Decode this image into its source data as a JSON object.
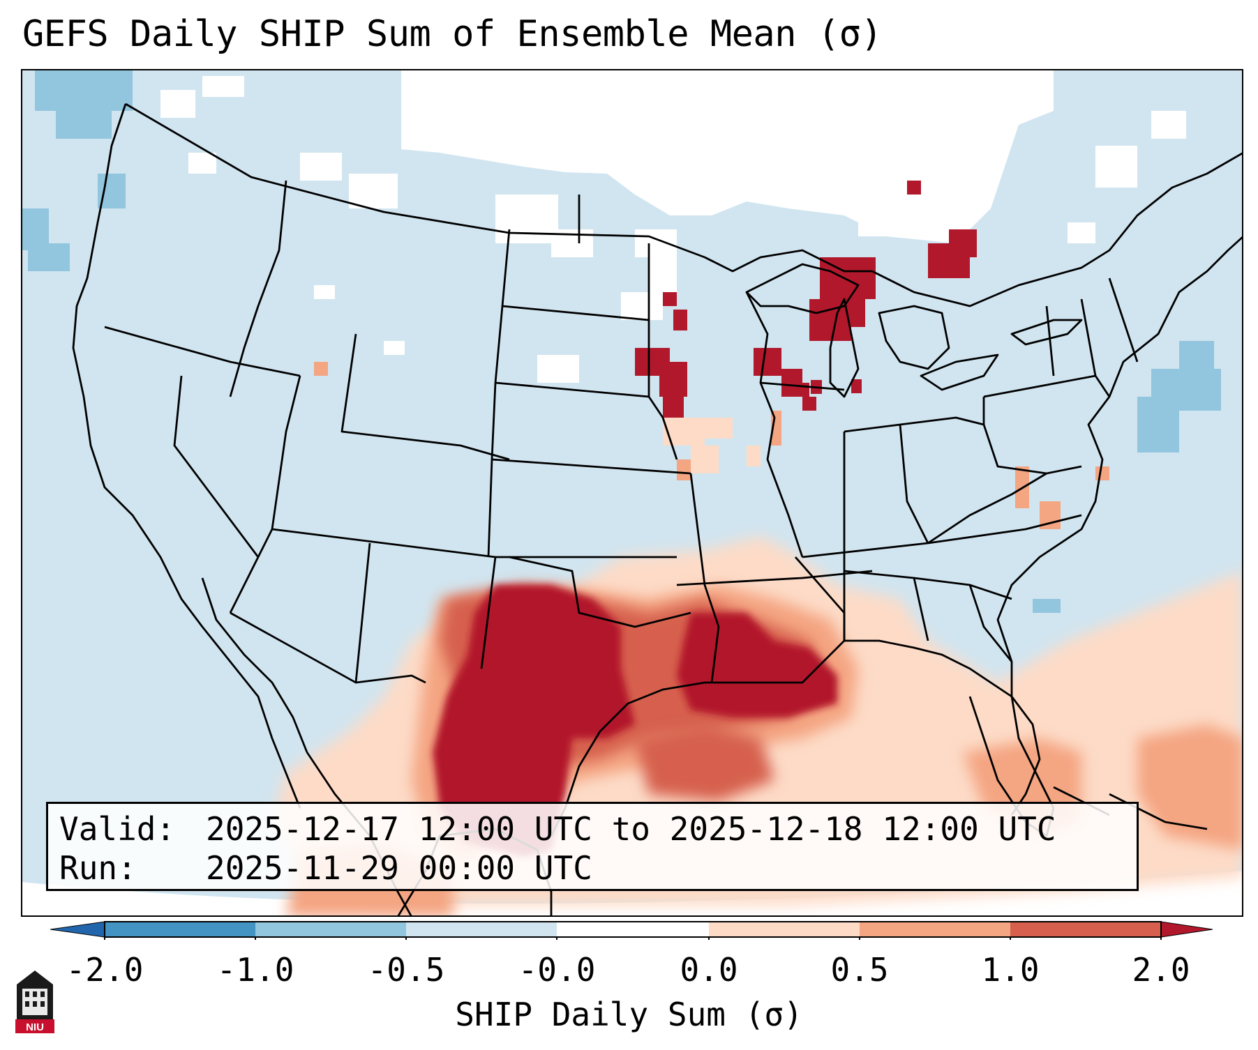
{
  "title": "GEFS Daily SHIP Sum of Ensemble Mean (σ)",
  "info": {
    "valid_key": "Valid:",
    "valid_value": "2025-12-17 12:00 UTC to 2025-12-18 12:00 UTC",
    "run_key": "Run:",
    "run_value": "2025-11-29 00:00 UTC"
  },
  "colorbar": {
    "label": "SHIP Daily Sum (σ)",
    "ticks": [
      "-2.0",
      "-1.0",
      "-0.5",
      "-0.0",
      "0.0",
      "0.5",
      "1.0",
      "2.0"
    ],
    "colors": {
      "under": "#2166ac",
      "b1": "#4393c3",
      "b2": "#92c5de",
      "b3": "#d1e5f0",
      "zero": "#ffffff",
      "b5": "#fddbc7",
      "b6": "#f4a582",
      "b7": "#d6604d",
      "over": "#b2182b"
    }
  },
  "logo_text": "NIU"
}
